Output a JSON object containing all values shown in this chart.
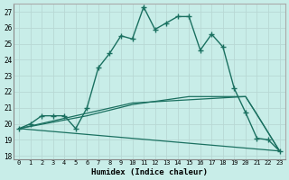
{
  "xlabel": "Humidex (Indice chaleur)",
  "bg_color": "#c8ede8",
  "line_color": "#1a7060",
  "grid_color": "#b8d8d4",
  "xlim": [
    -0.5,
    23.5
  ],
  "ylim": [
    17.8,
    27.5
  ],
  "yticks": [
    18,
    19,
    20,
    21,
    22,
    23,
    24,
    25,
    26,
    27
  ],
  "xticks": [
    0,
    1,
    2,
    3,
    4,
    5,
    6,
    7,
    8,
    9,
    10,
    11,
    12,
    13,
    14,
    15,
    16,
    17,
    18,
    19,
    20,
    21,
    22,
    23
  ],
  "line1_x": [
    0,
    1,
    2,
    3,
    4,
    5,
    6,
    7,
    8,
    9,
    10,
    11,
    12,
    13,
    14,
    15,
    16,
    17,
    18,
    19,
    20,
    21,
    22,
    23
  ],
  "line1_y": [
    19.7,
    20.0,
    20.5,
    20.5,
    20.5,
    19.7,
    21.0,
    23.5,
    24.4,
    25.5,
    25.3,
    27.3,
    25.9,
    26.3,
    26.7,
    26.7,
    24.6,
    25.6,
    24.8,
    22.2,
    20.7,
    19.1,
    19.0,
    18.3
  ],
  "line2_x": [
    0,
    23
  ],
  "line2_y": [
    19.7,
    18.3
  ],
  "line3_x": [
    0,
    6,
    10,
    15,
    20,
    21,
    23
  ],
  "line3_y": [
    19.7,
    20.5,
    21.2,
    21.7,
    21.7,
    20.6,
    18.3
  ],
  "line4_x": [
    0,
    10,
    20,
    23
  ],
  "line4_y": [
    19.7,
    21.3,
    21.7,
    18.3
  ]
}
